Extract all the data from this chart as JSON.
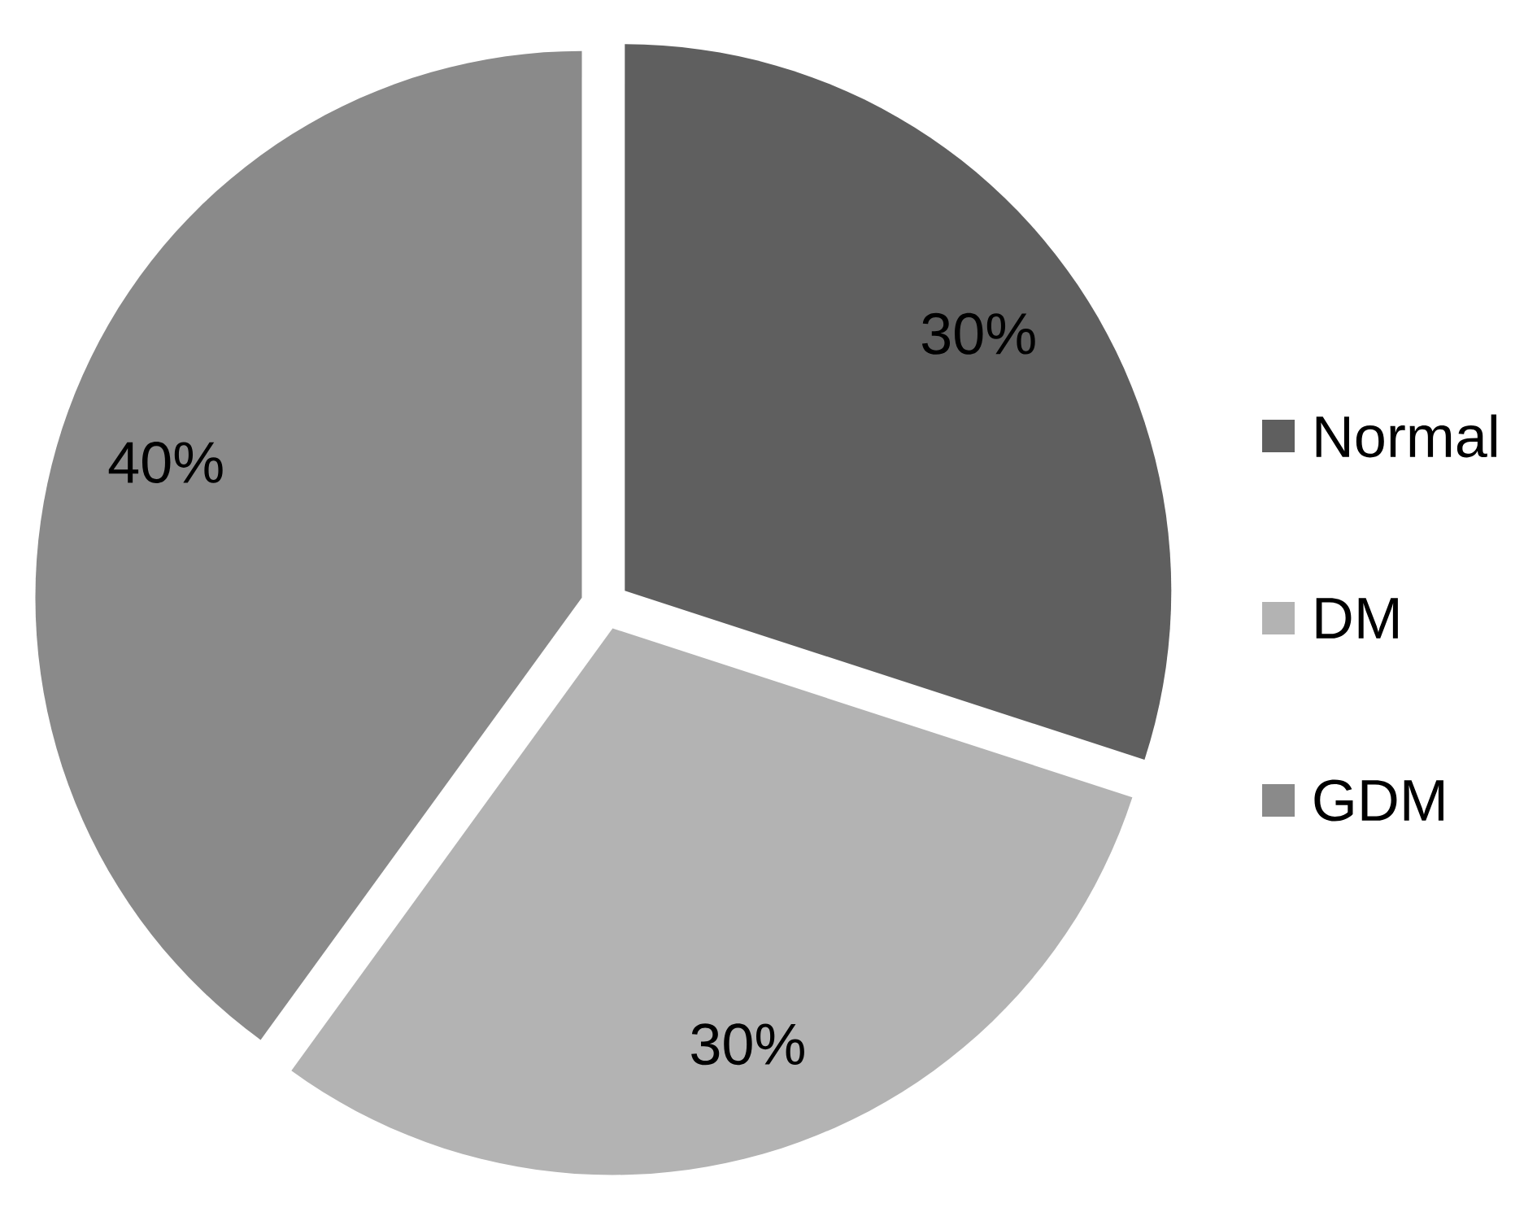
{
  "chart_data": {
    "type": "pie",
    "categories": [
      "Normal",
      "DM",
      "GDM"
    ],
    "values": [
      30,
      30,
      40
    ],
    "colors": [
      "#5f5f5f",
      "#b3b3b3",
      "#8a8a8a"
    ],
    "value_labels": [
      "30%",
      "30%",
      "40%"
    ],
    "legend": "right"
  }
}
